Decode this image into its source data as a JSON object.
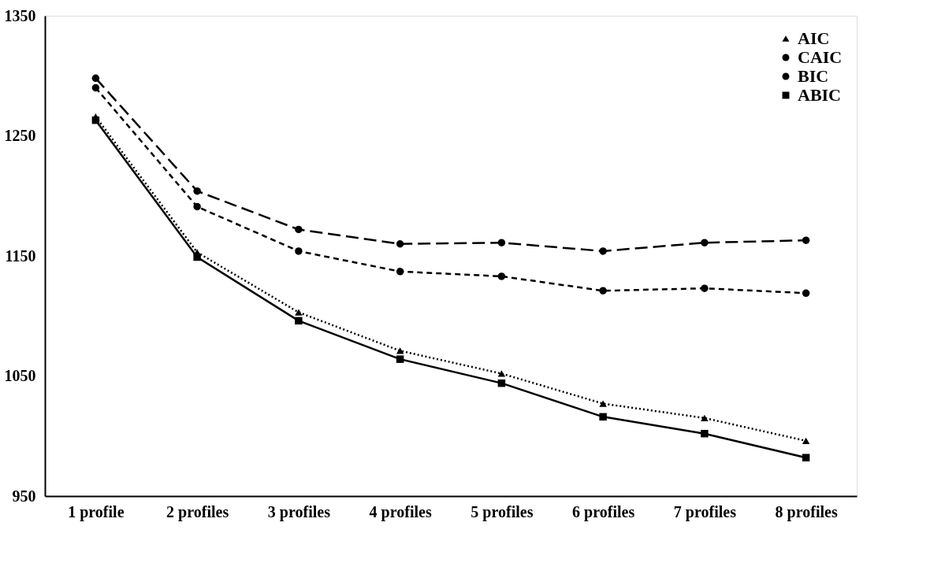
{
  "chart_data": {
    "type": "line",
    "categories": [
      "1 profile",
      "2 profiles",
      "3 profiles",
      "4 profiles",
      "5 profiles",
      "6 profiles",
      "7 profiles",
      "8 profiles"
    ],
    "ylim": [
      950,
      1350
    ],
    "yticks": [
      950,
      1050,
      1150,
      1250,
      1350
    ],
    "grid": false,
    "legend": "top right",
    "series": [
      {
        "name": "AIC",
        "color": "#000000",
        "marker": "triangle",
        "line_style": "dotted",
        "values": [
          1266,
          1153,
          1103,
          1071,
          1052,
          1027,
          1015,
          996
        ]
      },
      {
        "name": "CAIC",
        "color": "#000000",
        "marker": "circle",
        "line_style": "longdash",
        "values": [
          1298,
          1204,
          1172,
          1160,
          1161,
          1154,
          1161,
          1163
        ]
      },
      {
        "name": "BIC",
        "color": "#000000",
        "marker": "circle",
        "line_style": "dashed",
        "values": [
          1290,
          1191,
          1154,
          1137,
          1133,
          1121,
          1123,
          1119
        ]
      },
      {
        "name": "ABIC",
        "color": "#000000",
        "marker": "square",
        "line_style": "solid",
        "values": [
          1263,
          1149,
          1096,
          1064,
          1044,
          1016,
          1002,
          982
        ]
      }
    ]
  }
}
